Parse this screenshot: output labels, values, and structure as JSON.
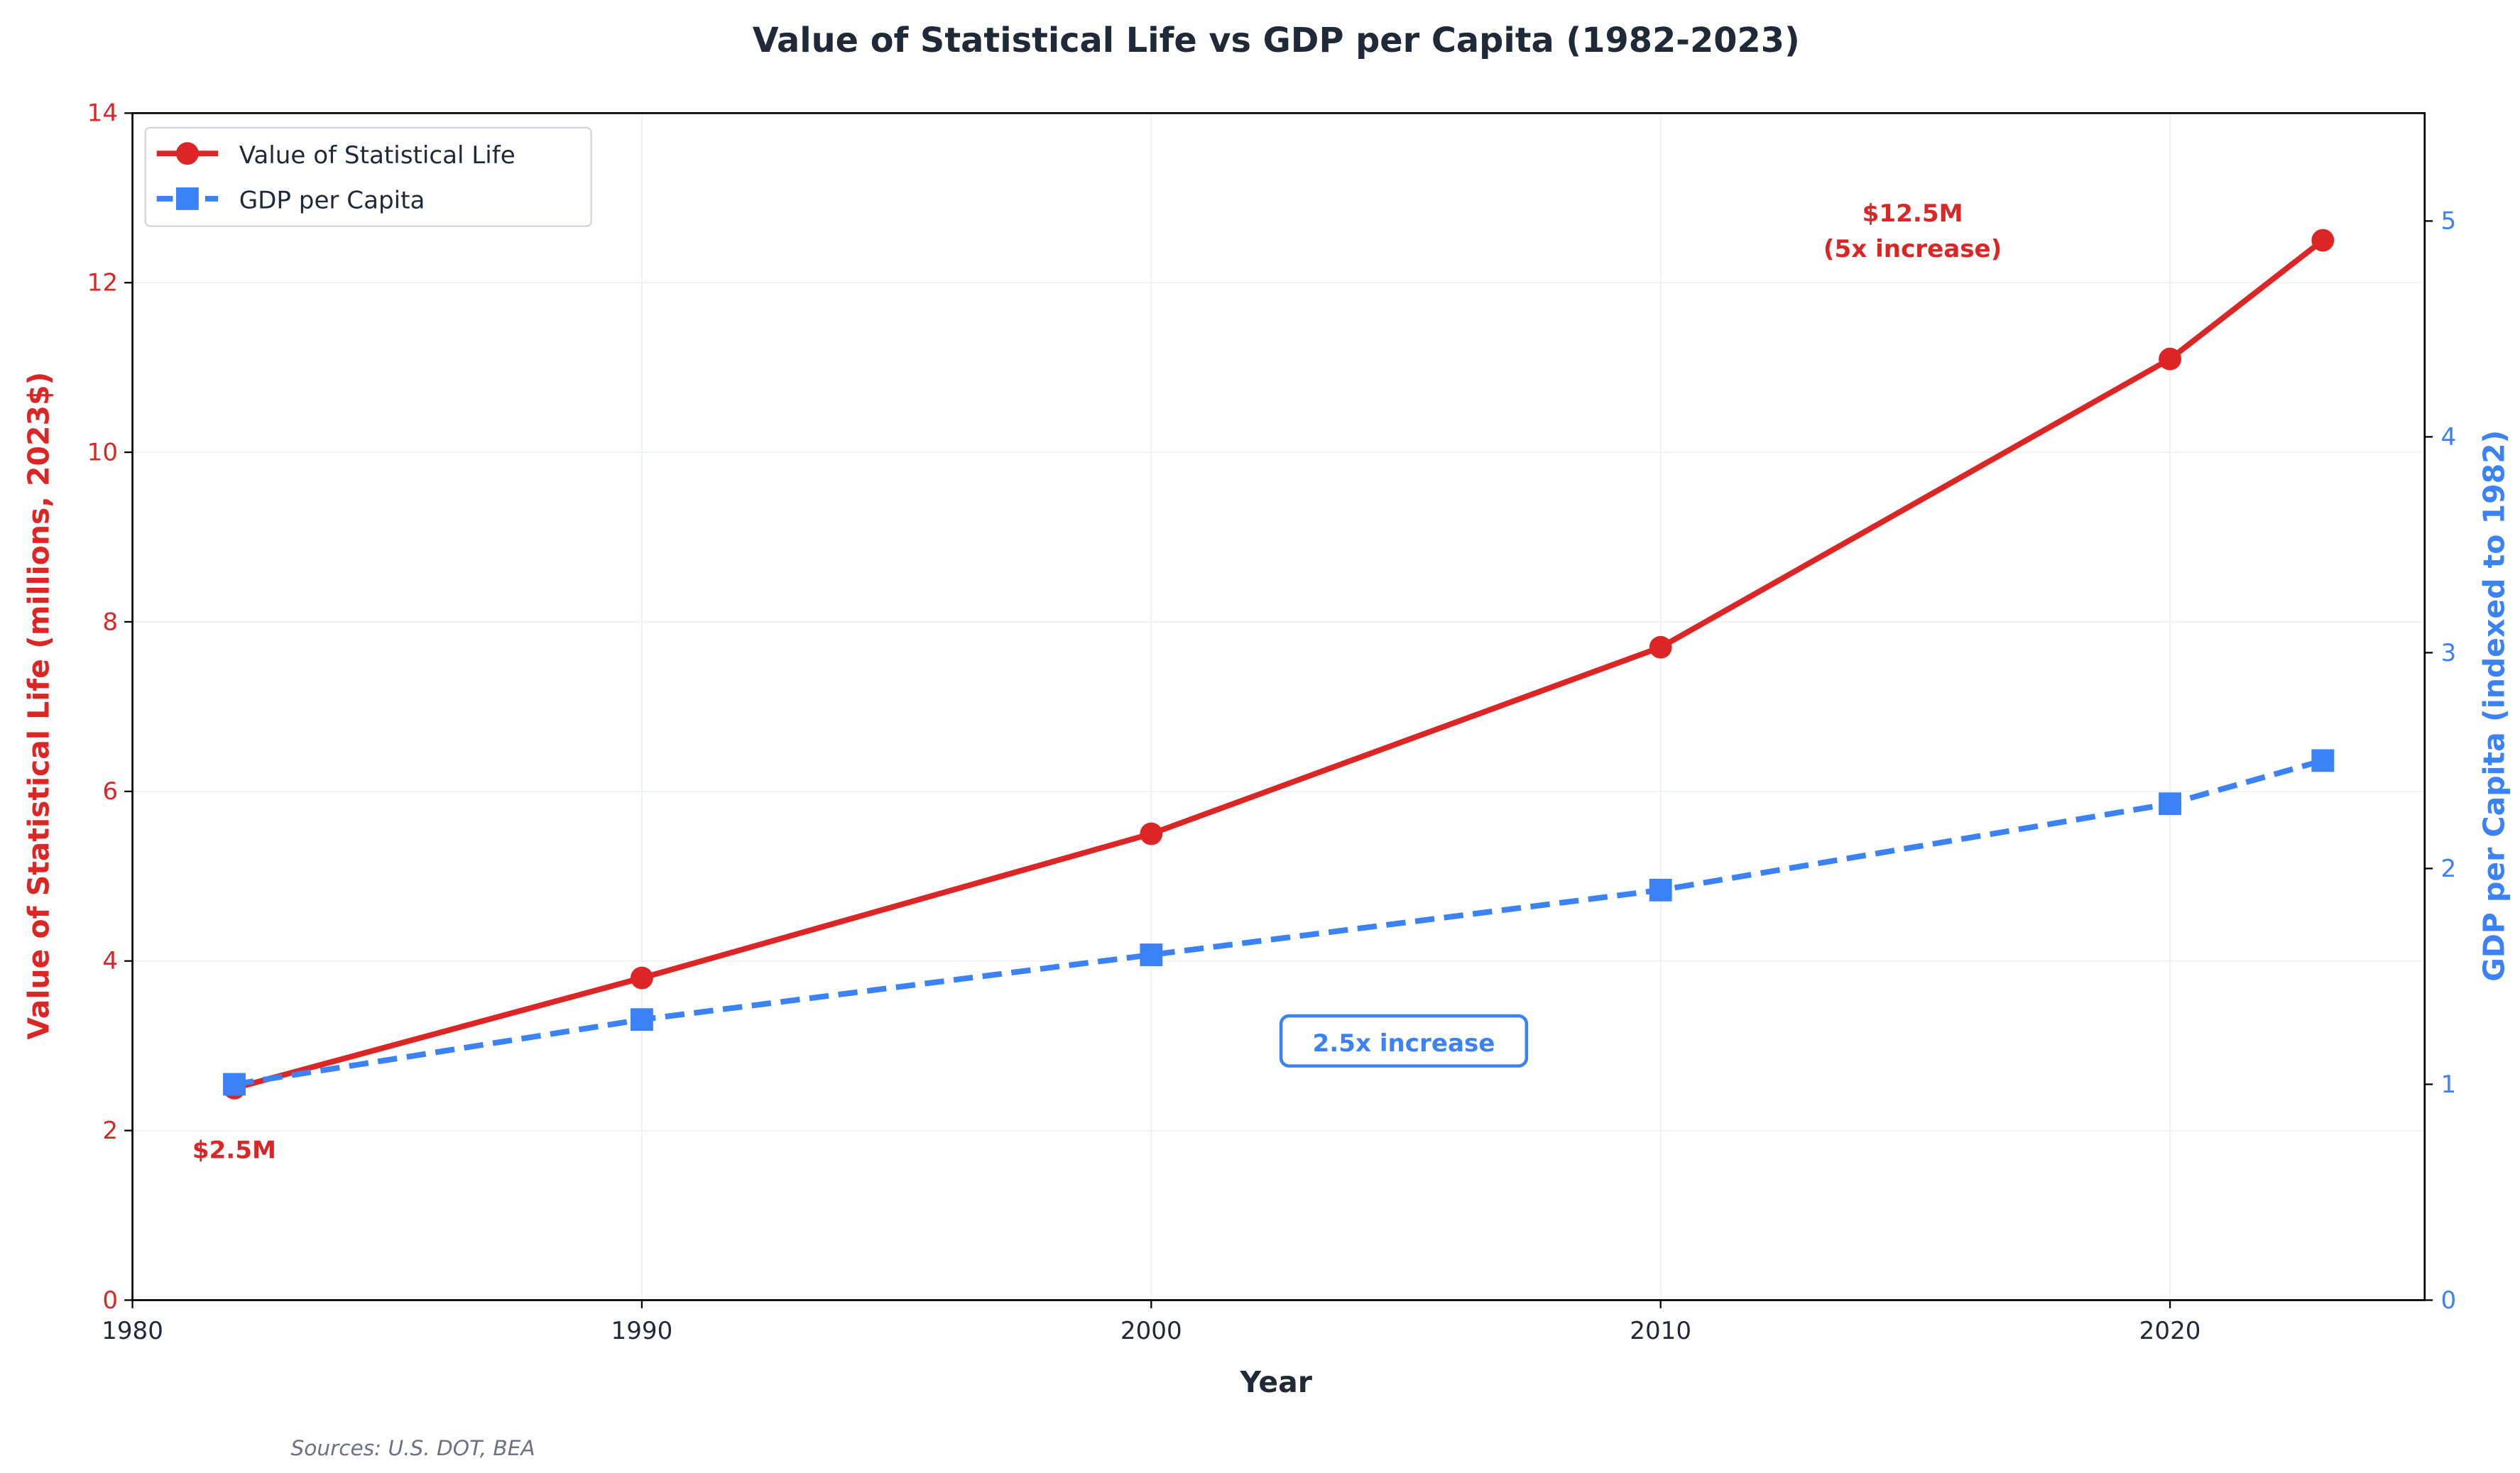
{
  "chart_data": {
    "type": "line",
    "title": "Value of Statistical Life vs GDP per Capita (1982-2023)",
    "xlabel": "Year",
    "ylabel": "Value of Statistical Life (millions, 2023$)",
    "y2label": "GDP per Capita (indexed to 1982)",
    "xlim": [
      1980,
      2025
    ],
    "ylim": [
      0,
      14
    ],
    "y2lim": [
      0,
      5.5
    ],
    "xticks": [
      "1980",
      "1990",
      "2000",
      "2010",
      "2020"
    ],
    "yticks": [
      "0",
      "2",
      "4",
      "6",
      "8",
      "10",
      "12",
      "14"
    ],
    "y2ticks": [
      "0",
      "1",
      "2",
      "3",
      "4",
      "5"
    ],
    "grid": true,
    "legend_placement": "top-left",
    "x": [
      1982,
      1990,
      2000,
      2010,
      2020,
      2023
    ],
    "series": [
      {
        "name": "Value of Statistical Life",
        "axis": "left",
        "values": [
          2.5,
          3.8,
          5.5,
          7.7,
          11.1,
          12.5
        ],
        "color": "#dc2626",
        "marker": "circle",
        "style": "solid"
      },
      {
        "name": "GDP per Capita",
        "axis": "right",
        "values": [
          1.0,
          1.3,
          1.6,
          1.9,
          2.3,
          2.5
        ],
        "color": "#3b82f6",
        "marker": "square",
        "style": "dashed"
      }
    ],
    "annotations": {
      "start": "$2.5M",
      "end_line1": "$12.5M",
      "end_line2": "(5x increase)",
      "gdp": "2.5x increase"
    },
    "source": "Sources: U.S. DOT, BEA"
  }
}
